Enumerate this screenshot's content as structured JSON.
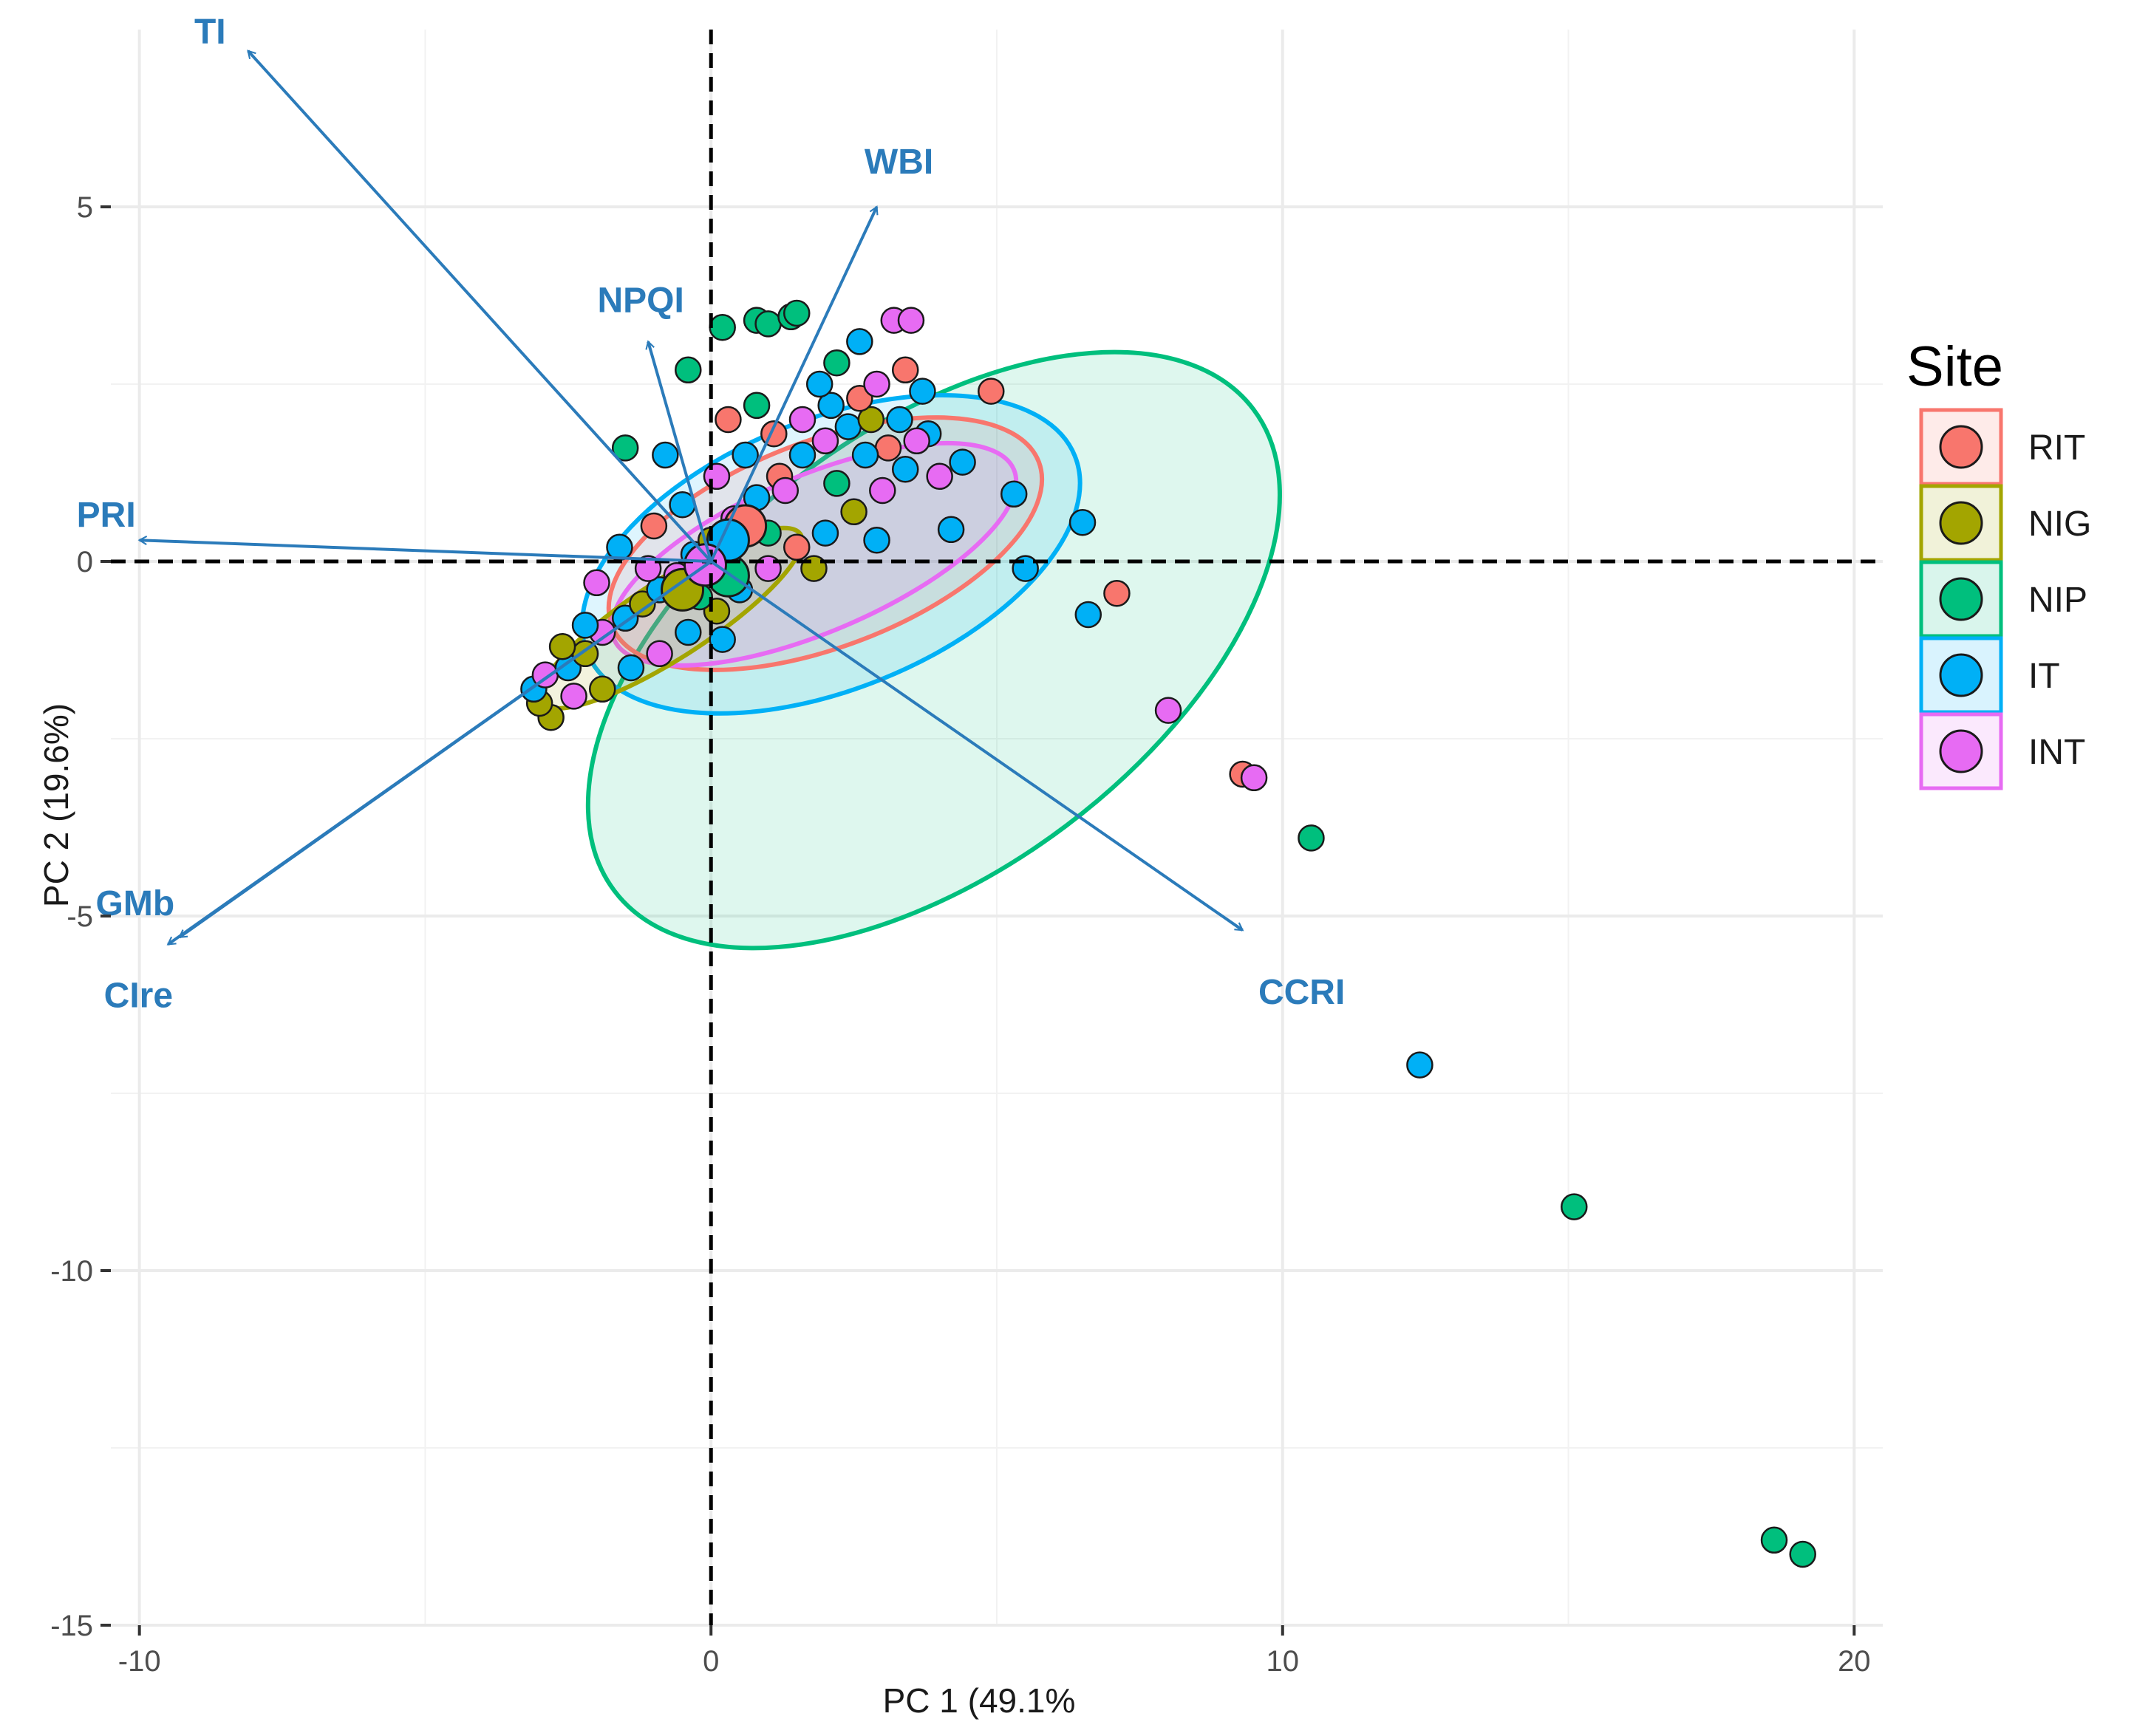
{
  "chart_data": {
    "type": "scatter",
    "subtype": "pca-biplot",
    "title": "",
    "xlabel": "PC 1 (49.1%",
    "ylabel": "PC 2 (19.6%)",
    "xlim": [
      -10.5,
      20.5
    ],
    "ylim": [
      -15,
      7.5
    ],
    "x_ticks": [
      -10,
      0,
      10,
      20
    ],
    "x_tick_labels": [
      "-10",
      "0",
      "10",
      "20"
    ],
    "y_ticks": [
      5,
      0,
      -5,
      -10,
      -15
    ],
    "y_tick_labels": [
      "5",
      "0",
      "-5",
      "-10",
      "-15"
    ],
    "legend": {
      "title": "Site",
      "placement": "right",
      "items": [
        {
          "label": "RIT",
          "color": "#F8766D"
        },
        {
          "label": "NIG",
          "color": "#A3A500"
        },
        {
          "label": "NIP",
          "color": "#00BF7D"
        },
        {
          "label": "IT",
          "color": "#00B0F6"
        },
        {
          "label": "INT",
          "color": "#E76BF3"
        }
      ]
    },
    "arrow_color": "#2B7BBA",
    "loadings": [
      {
        "name": "TI",
        "x": -8.1,
        "y": 7.2
      },
      {
        "name": "WBI",
        "x": 2.9,
        "y": 5.0
      },
      {
        "name": "NPQI",
        "x": -1.1,
        "y": 3.1
      },
      {
        "name": "PRI",
        "x": -10.0,
        "y": 0.3
      },
      {
        "name": "GMb",
        "x": -9.3,
        "y": -5.3
      },
      {
        "name": "CIre",
        "x": -9.5,
        "y": -5.4
      },
      {
        "name": "CCRI",
        "x": 9.3,
        "y": -5.2
      }
    ],
    "ellipses": [
      {
        "site": "NIP",
        "cx": 3.9,
        "cy": -1.25,
        "rx": 7.0,
        "ry": 3.1,
        "angle_deg": -37
      },
      {
        "site": "IT",
        "cx": 2.1,
        "cy": 0.1,
        "rx": 4.6,
        "ry": 1.9,
        "angle_deg": -22
      },
      {
        "site": "RIT",
        "cx": 2.0,
        "cy": 0.25,
        "rx": 4.0,
        "ry": 1.45,
        "angle_deg": -21
      },
      {
        "site": "INT",
        "cx": 1.8,
        "cy": 0.1,
        "rx": 3.8,
        "ry": 1.1,
        "angle_deg": -23
      },
      {
        "site": "NIG",
        "cx": -0.7,
        "cy": -0.8,
        "rx": 2.7,
        "ry": 0.55,
        "angle_deg": -33
      }
    ],
    "centroids": [
      {
        "site": "RIT",
        "x": 0.6,
        "y": 0.5
      },
      {
        "site": "NIG",
        "x": -0.5,
        "y": -0.4
      },
      {
        "site": "NIP",
        "x": 0.3,
        "y": -0.2
      },
      {
        "site": "IT",
        "x": 0.3,
        "y": 0.3
      },
      {
        "site": "INT",
        "x": -0.1,
        "y": -0.05
      }
    ],
    "points": [
      {
        "site": "NIP",
        "x": 0.2,
        "y": 3.3
      },
      {
        "site": "NIP",
        "x": 0.8,
        "y": 3.4
      },
      {
        "site": "NIP",
        "x": 1.0,
        "y": 3.35
      },
      {
        "site": "NIP",
        "x": 1.4,
        "y": 3.45
      },
      {
        "site": "NIP",
        "x": 1.5,
        "y": 3.5
      },
      {
        "site": "NIP",
        "x": -0.4,
        "y": 2.7
      },
      {
        "site": "NIP",
        "x": 2.2,
        "y": 2.8
      },
      {
        "site": "NIP",
        "x": 0.8,
        "y": 2.2
      },
      {
        "site": "IT",
        "x": 2.6,
        "y": 3.1
      },
      {
        "site": "INT",
        "x": 3.2,
        "y": 3.4
      },
      {
        "site": "INT",
        "x": 3.5,
        "y": 3.4
      },
      {
        "site": "RIT",
        "x": 3.4,
        "y": 2.7
      },
      {
        "site": "RIT",
        "x": 4.9,
        "y": 2.4
      },
      {
        "site": "IT",
        "x": 3.8,
        "y": 1.8
      },
      {
        "site": "IT",
        "x": 4.4,
        "y": 1.4
      },
      {
        "site": "IT",
        "x": 5.3,
        "y": 0.95
      },
      {
        "site": "IT",
        "x": 4.2,
        "y": 0.45
      },
      {
        "site": "IT",
        "x": 6.5,
        "y": 0.55
      },
      {
        "site": "IT",
        "x": 5.5,
        "y": -0.1
      },
      {
        "site": "IT",
        "x": 6.6,
        "y": -0.75
      },
      {
        "site": "RIT",
        "x": 7.1,
        "y": -0.45
      },
      {
        "site": "INT",
        "x": 8.0,
        "y": -2.1
      },
      {
        "site": "RIT",
        "x": 9.3,
        "y": -3.0
      },
      {
        "site": "INT",
        "x": 9.5,
        "y": -3.05
      },
      {
        "site": "NIP",
        "x": 10.5,
        "y": -3.9
      },
      {
        "site": "IT",
        "x": 12.4,
        "y": -7.1
      },
      {
        "site": "NIP",
        "x": 15.1,
        "y": -9.1
      },
      {
        "site": "NIP",
        "x": 18.6,
        "y": -13.8
      },
      {
        "site": "NIP",
        "x": 19.1,
        "y": -14.0
      },
      {
        "site": "NIG",
        "x": -2.8,
        "y": -2.2
      },
      {
        "site": "NIG",
        "x": -3.0,
        "y": -2.0
      },
      {
        "site": "IT",
        "x": -3.1,
        "y": -1.8
      },
      {
        "site": "INT",
        "x": -2.9,
        "y": -1.6
      },
      {
        "site": "IT",
        "x": -2.5,
        "y": -1.5
      },
      {
        "site": "NIG",
        "x": -2.2,
        "y": -1.3
      },
      {
        "site": "INT",
        "x": -1.9,
        "y": -1.0
      },
      {
        "site": "IT",
        "x": -1.5,
        "y": -0.8
      },
      {
        "site": "NIG",
        "x": -1.2,
        "y": -0.6
      },
      {
        "site": "IT",
        "x": -0.9,
        "y": -0.4
      },
      {
        "site": "INT",
        "x": -0.6,
        "y": -0.2
      },
      {
        "site": "IT",
        "x": -0.3,
        "y": 0.1
      },
      {
        "site": "NIG",
        "x": 0.0,
        "y": 0.3
      },
      {
        "site": "INT",
        "x": 0.4,
        "y": 0.6
      },
      {
        "site": "IT",
        "x": 0.8,
        "y": 0.9
      },
      {
        "site": "RIT",
        "x": 1.2,
        "y": 1.2
      },
      {
        "site": "IT",
        "x": 1.6,
        "y": 1.5
      },
      {
        "site": "INT",
        "x": 2.0,
        "y": 1.7
      },
      {
        "site": "IT",
        "x": 2.4,
        "y": 1.9
      },
      {
        "site": "NIG",
        "x": 2.8,
        "y": 2.0
      },
      {
        "site": "RIT",
        "x": 3.1,
        "y": 1.6
      },
      {
        "site": "IT",
        "x": 3.4,
        "y": 1.3
      },
      {
        "site": "INT",
        "x": 3.0,
        "y": 1.0
      },
      {
        "site": "NIG",
        "x": 2.5,
        "y": 0.7
      },
      {
        "site": "IT",
        "x": 2.0,
        "y": 0.4
      },
      {
        "site": "RIT",
        "x": 1.5,
        "y": 0.2
      },
      {
        "site": "INT",
        "x": 1.0,
        "y": -0.1
      },
      {
        "site": "IT",
        "x": 0.5,
        "y": -0.4
      },
      {
        "site": "NIG",
        "x": 0.1,
        "y": -0.7
      },
      {
        "site": "IT",
        "x": -0.4,
        "y": -1.0
      },
      {
        "site": "INT",
        "x": -0.9,
        "y": -1.3
      },
      {
        "site": "IT",
        "x": -1.4,
        "y": -1.5
      },
      {
        "site": "NIG",
        "x": -1.9,
        "y": -1.8
      },
      {
        "site": "INT",
        "x": -2.4,
        "y": -1.9
      },
      {
        "site": "IT",
        "x": -1.6,
        "y": 0.2
      },
      {
        "site": "INT",
        "x": -2.0,
        "y": -0.3
      },
      {
        "site": "RIT",
        "x": -1.0,
        "y": 0.5
      },
      {
        "site": "IT",
        "x": -0.5,
        "y": 0.8
      },
      {
        "site": "INT",
        "x": 0.1,
        "y": 1.2
      },
      {
        "site": "IT",
        "x": 0.6,
        "y": 1.5
      },
      {
        "site": "RIT",
        "x": 1.1,
        "y": 1.8
      },
      {
        "site": "INT",
        "x": 1.6,
        "y": 2.0
      },
      {
        "site": "IT",
        "x": 2.1,
        "y": 2.2
      },
      {
        "site": "RIT",
        "x": 2.6,
        "y": 2.3
      },
      {
        "site": "IT",
        "x": 3.3,
        "y": 2.0
      },
      {
        "site": "INT",
        "x": 3.6,
        "y": 1.7
      },
      {
        "site": "IT",
        "x": 2.9,
        "y": 0.3
      },
      {
        "site": "NIG",
        "x": 1.8,
        "y": -0.1
      },
      {
        "site": "NIP",
        "x": 2.2,
        "y": 1.1
      },
      {
        "site": "NIP",
        "x": 1.0,
        "y": 0.4
      },
      {
        "site": "NIP",
        "x": -0.2,
        "y": -0.5
      },
      {
        "site": "NIP",
        "x": -1.5,
        "y": 1.6
      },
      {
        "site": "IT",
        "x": 2.7,
        "y": 1.5
      },
      {
        "site": "INT",
        "x": 1.3,
        "y": 1.0
      },
      {
        "site": "IT",
        "x": 0.2,
        "y": -1.1
      },
      {
        "site": "INT",
        "x": -1.1,
        "y": -0.1
      },
      {
        "site": "IT",
        "x": -2.2,
        "y": -0.9
      },
      {
        "site": "NIG",
        "x": -2.6,
        "y": -1.2
      },
      {
        "site": "IT",
        "x": 1.9,
        "y": 2.5
      },
      {
        "site": "INT",
        "x": 2.9,
        "y": 2.5
      },
      {
        "site": "IT",
        "x": 3.7,
        "y": 2.4
      },
      {
        "site": "RIT",
        "x": 0.3,
        "y": 2.0
      },
      {
        "site": "IT",
        "x": -0.8,
        "y": 1.5
      },
      {
        "site": "INT",
        "x": 4.0,
        "y": 1.2
      }
    ]
  }
}
